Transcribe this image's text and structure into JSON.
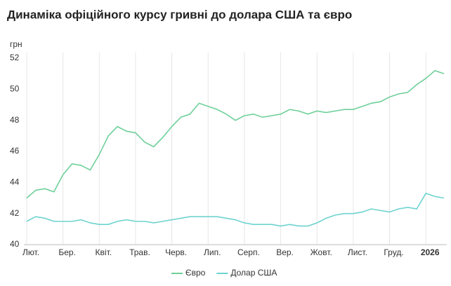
{
  "chart_data": {
    "type": "line",
    "title": "Динаміка офіційного курсу гривні до долара США та євро",
    "y_label": "грн",
    "categories": [
      "Лют.",
      null,
      null,
      null,
      "Бер.",
      null,
      null,
      null,
      "Квіт.",
      null,
      null,
      null,
      "Трав.",
      null,
      null,
      null,
      "Черв.",
      null,
      null,
      null,
      "Лип.",
      null,
      null,
      null,
      "Серп.",
      null,
      null,
      null,
      "Вер.",
      null,
      null,
      null,
      "Жовт.",
      null,
      null,
      null,
      "Лист.",
      null,
      null,
      null,
      "Груд.",
      null,
      null,
      null,
      "2026",
      null,
      null
    ],
    "series": [
      {
        "name": "Євро",
        "color": "#6fd09a",
        "values": [
          43.0,
          43.5,
          43.6,
          43.4,
          44.5,
          45.2,
          45.1,
          44.8,
          45.8,
          47.0,
          47.6,
          47.3,
          47.2,
          46.6,
          46.3,
          46.9,
          47.6,
          48.2,
          48.4,
          49.1,
          48.9,
          48.7,
          48.4,
          48.0,
          48.3,
          48.4,
          48.2,
          48.3,
          48.4,
          48.7,
          48.6,
          48.4,
          48.6,
          48.5,
          48.6,
          48.7,
          48.7,
          48.9,
          49.1,
          49.2,
          49.5,
          49.7,
          49.8,
          50.3,
          50.7,
          51.2,
          51.0
        ]
      },
      {
        "name": "Долар США",
        "color": "#6dd3cf",
        "values": [
          41.5,
          41.8,
          41.7,
          41.5,
          41.5,
          41.5,
          41.6,
          41.4,
          41.3,
          41.3,
          41.5,
          41.6,
          41.5,
          41.5,
          41.4,
          41.5,
          41.6,
          41.7,
          41.8,
          41.8,
          41.8,
          41.8,
          41.7,
          41.6,
          41.4,
          41.3,
          41.3,
          41.3,
          41.2,
          41.3,
          41.2,
          41.2,
          41.4,
          41.7,
          41.9,
          42.0,
          42.0,
          42.1,
          42.3,
          42.2,
          42.1,
          42.3,
          42.4,
          42.3,
          43.3,
          43.1,
          43.0
        ]
      }
    ],
    "ylim": [
      40,
      52
    ],
    "yticks": [
      40,
      42,
      44,
      46,
      48,
      50,
      52
    ],
    "grid": true
  }
}
